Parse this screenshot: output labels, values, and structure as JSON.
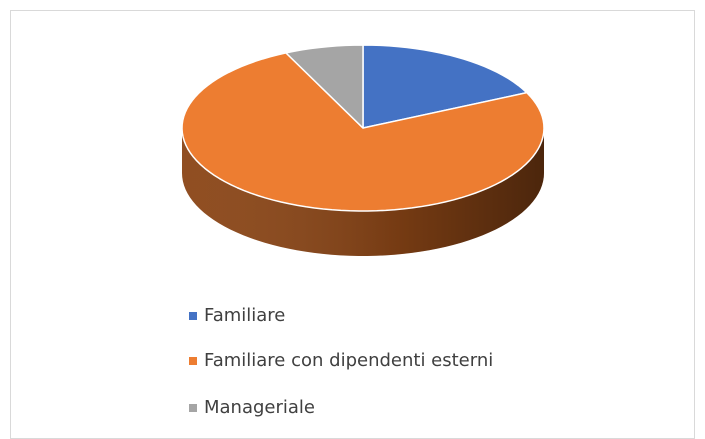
{
  "chart_data": {
    "type": "pie",
    "three_d": true,
    "categories": [
      "Familiare",
      "Familiare con dipendenti esterni",
      "Manageriale"
    ],
    "values": [
      18,
      75,
      7
    ],
    "colors": [
      "#4472c4",
      "#ed7d31",
      "#a5a5a5"
    ],
    "side_colors": [
      "#2f528f",
      "#8a4516",
      "#6b6b6b"
    ],
    "legend": "bottom"
  }
}
